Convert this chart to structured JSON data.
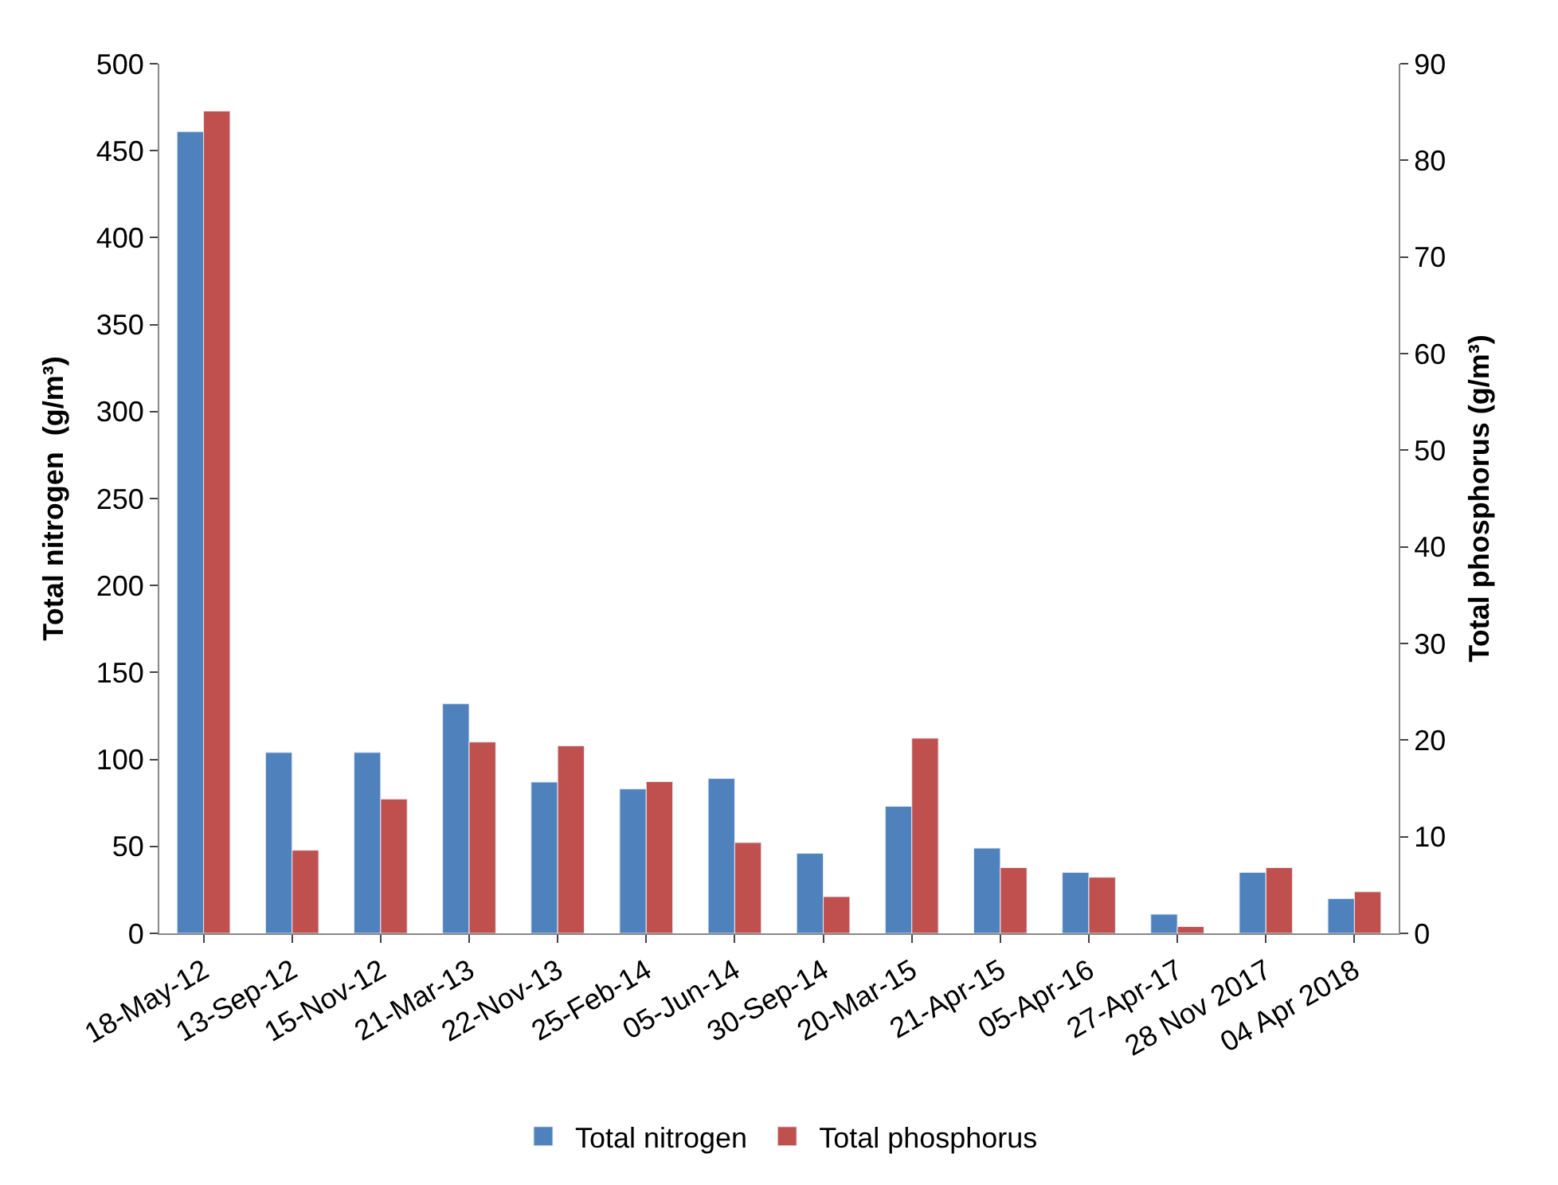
{
  "chart_data": {
    "type": "bar",
    "ylabel": "Total nitrogen  (g/m³)",
    "y2label": "Total phosphorus (g/m³)",
    "categories": [
      "18-May-12",
      "13-Sep-12",
      "15-Nov-12",
      "21-Mar-13",
      "22-Nov-13",
      "25-Feb-14",
      "05-Jun-14",
      "30-Sep-14",
      "20-Mar-15",
      "21-Apr-15",
      "05-Apr-16",
      "27-Apr-17",
      "28 Nov 2017",
      "04 Apr 2018"
    ],
    "series": [
      {
        "name": "Total nitrogen",
        "color": "#4f81bd",
        "values": [
          461,
          104,
          104,
          132,
          87,
          83,
          89,
          46,
          73,
          49,
          35,
          11,
          35,
          20
        ]
      },
      {
        "name": "Total phosphorus",
        "color": "#c0504d",
        "axis": "y2",
        "values": [
          85.1,
          8.6,
          13.9,
          19.8,
          19.4,
          15.7,
          9.4,
          3.8,
          20.2,
          6.8,
          5.8,
          0.7,
          6.8,
          4.3
        ]
      }
    ],
    "ylim": [
      0,
      500
    ],
    "yticks": [
      0,
      50,
      100,
      150,
      200,
      250,
      300,
      350,
      400,
      450,
      500
    ],
    "y2lim": [
      0,
      90
    ],
    "y2ticks": [
      0,
      10,
      20,
      30,
      40,
      50,
      60,
      70,
      80,
      90
    ],
    "legend": "bottom"
  }
}
